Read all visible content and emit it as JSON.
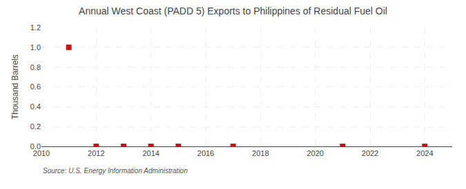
{
  "chart_data": {
    "type": "scatter",
    "title": "Annual West Coast (PADD 5) Exports to Philippines of Residual Fuel Oil",
    "ylabel": "Thousand Barrels",
    "annotations": [
      "Source: U.S. Energy Information Administration"
    ],
    "x": [
      2011,
      2012,
      2013,
      2014,
      2015,
      2017,
      2021,
      2024
    ],
    "values": [
      1.0,
      0.0,
      0.0,
      0.0,
      0.0,
      0.0,
      0.0,
      0.0
    ],
    "color": "#cc1111",
    "marker": "square",
    "xlim": [
      2010,
      2025
    ],
    "ylim": [
      0.0,
      1.2
    ],
    "xticks": [
      2010,
      2012,
      2014,
      2016,
      2018,
      2020,
      2022,
      2024
    ],
    "yticks": [
      {
        "value": 0.0,
        "label": "0.0"
      },
      0.2,
      0.4,
      0.6,
      0.8,
      {
        "value": 1.0,
        "label": "1.0"
      },
      1.2
    ],
    "grid": true
  }
}
